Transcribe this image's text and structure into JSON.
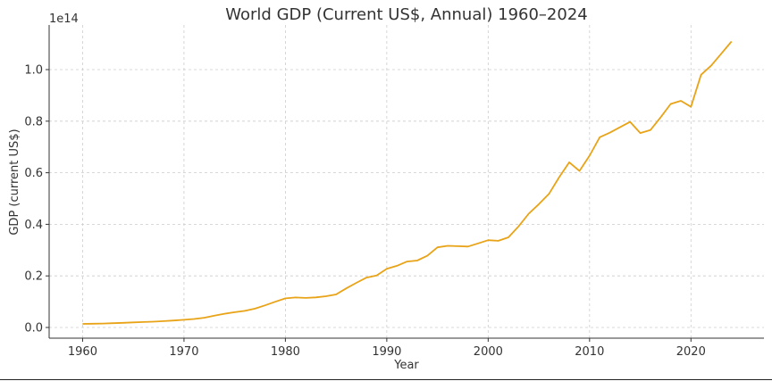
{
  "chart_data": {
    "type": "line",
    "title": "World GDP (Current US$, Annual) 1960–2024",
    "xlabel": "Year",
    "ylabel": "GDP (current US$)",
    "y_offset_label": "1e14",
    "xlim": [
      1956.7,
      2027.2
    ],
    "ylim": [
      -0.0415,
      1.173
    ],
    "xticks": [
      1960,
      1970,
      1980,
      1990,
      2000,
      2010,
      2020
    ],
    "yticks": [
      0.0,
      0.2,
      0.4,
      0.6,
      0.8,
      1.0
    ],
    "ytick_labels": [
      "0.0",
      "0.2",
      "0.4",
      "0.6",
      "0.8",
      "1.0"
    ],
    "grid": true,
    "color": "#e8a317",
    "series": [
      {
        "name": "World GDP",
        "x": [
          1960,
          1961,
          1962,
          1963,
          1964,
          1965,
          1966,
          1967,
          1968,
          1969,
          1970,
          1971,
          1972,
          1973,
          1974,
          1975,
          1976,
          1977,
          1978,
          1979,
          1980,
          1981,
          1982,
          1983,
          1984,
          1985,
          1986,
          1987,
          1988,
          1989,
          1990,
          1991,
          1992,
          1993,
          1994,
          1995,
          1996,
          1997,
          1998,
          1999,
          2000,
          2001,
          2002,
          2003,
          2004,
          2005,
          2006,
          2007,
          2008,
          2009,
          2010,
          2011,
          2012,
          2013,
          2014,
          2015,
          2016,
          2017,
          2018,
          2019,
          2020,
          2021,
          2022,
          2023,
          2024
        ],
        "values": [
          0.0138,
          0.0144,
          0.0154,
          0.0165,
          0.018,
          0.0196,
          0.0212,
          0.0226,
          0.0245,
          0.027,
          0.0298,
          0.0328,
          0.0378,
          0.0461,
          0.0532,
          0.0592,
          0.0645,
          0.0729,
          0.0858,
          0.0998,
          0.1127,
          0.1163,
          0.1145,
          0.1166,
          0.1212,
          0.128,
          0.1517,
          0.1729,
          0.1936,
          0.2018,
          0.2276,
          0.2391,
          0.2556,
          0.2597,
          0.2782,
          0.3106,
          0.3166,
          0.3153,
          0.314,
          0.326,
          0.3384,
          0.336,
          0.3494,
          0.3919,
          0.4413,
          0.4781,
          0.5179,
          0.5828,
          0.6406,
          0.607,
          0.666,
          0.7377,
          0.7552,
          0.7764,
          0.7972,
          0.754,
          0.7655,
          0.8147,
          0.8667,
          0.8788,
          0.8556,
          0.9798,
          1.016,
          1.062,
          1.109
        ]
      }
    ]
  }
}
